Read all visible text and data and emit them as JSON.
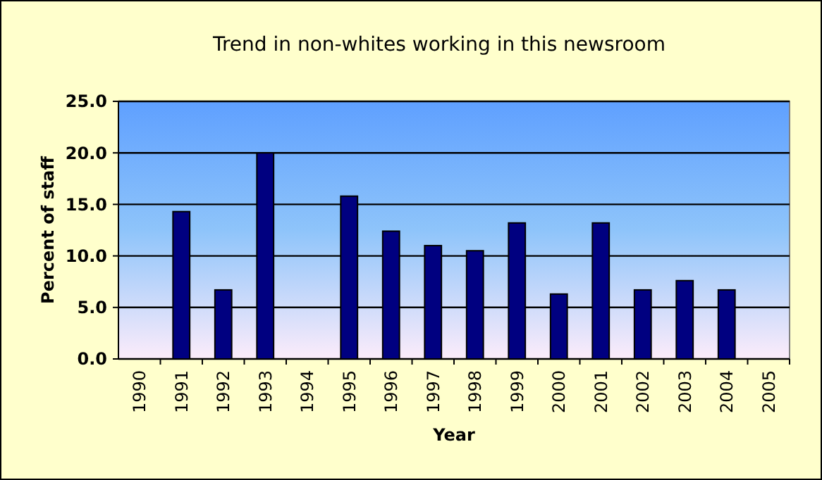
{
  "chart_data": {
    "type": "bar",
    "title": "Trend in non-whites working in this newsroom",
    "xlabel": "Year",
    "ylabel": "Percent of staff",
    "categories": [
      "1990",
      "1991",
      "1992",
      "1993",
      "1994",
      "1995",
      "1996",
      "1997",
      "1998",
      "1999",
      "2000",
      "2001",
      "2002",
      "2003",
      "2004",
      "2005"
    ],
    "values": [
      null,
      14.3,
      6.7,
      20.0,
      null,
      15.8,
      12.4,
      11.0,
      10.5,
      13.2,
      6.3,
      13.2,
      6.7,
      7.6,
      6.7,
      null
    ],
    "color": "#000080",
    "ylim": [
      0,
      25
    ],
    "yticks": [
      {
        "value": 0,
        "label": "0.0"
      },
      {
        "value": 5,
        "label": "5.0"
      },
      {
        "value": 10,
        "label": "10.0"
      },
      {
        "value": 15,
        "label": "15.0"
      },
      {
        "value": 20,
        "label": "20.0"
      },
      {
        "value": 25,
        "label": "25.0"
      }
    ],
    "grid": "y"
  }
}
